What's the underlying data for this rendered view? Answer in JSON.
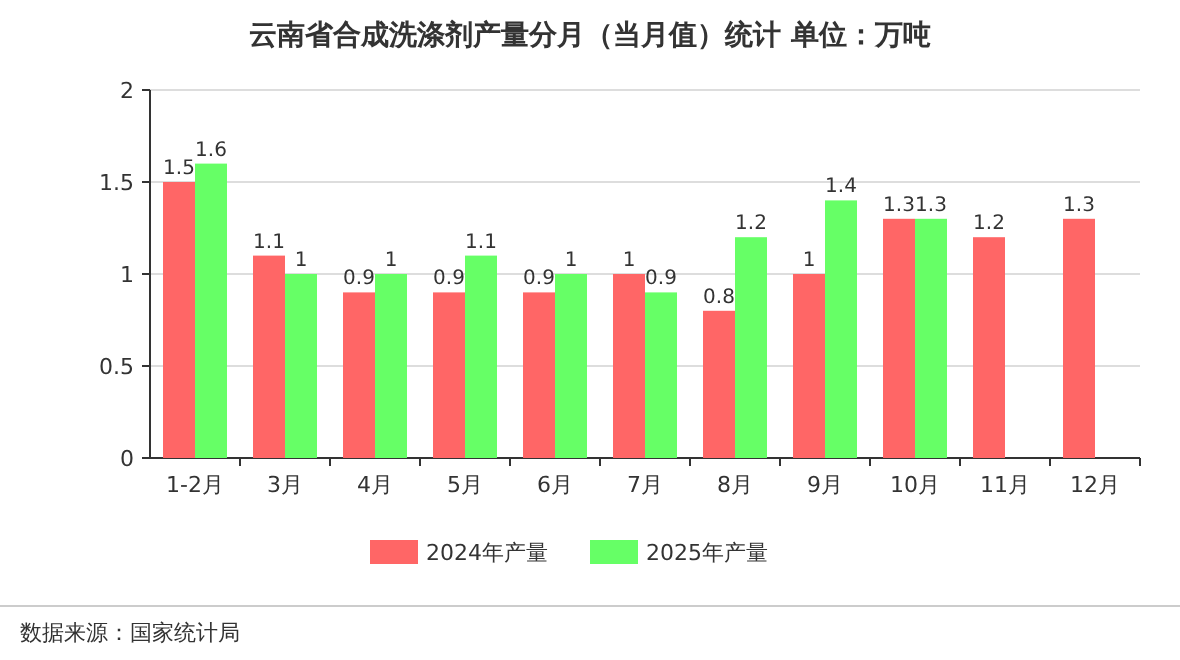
{
  "chart_data": {
    "type": "bar",
    "title": "云南省合成洗涤剂产量分月（当月值）统计  单位：万吨",
    "categories": [
      "1-2月",
      "3月",
      "4月",
      "5月",
      "6月",
      "7月",
      "8月",
      "9月",
      "10月",
      "11月",
      "12月"
    ],
    "series": [
      {
        "name": "2024年产量",
        "color": "#ff6666",
        "values": [
          1.5,
          1.1,
          0.9,
          0.9,
          0.9,
          1,
          0.8,
          1,
          1.3,
          1.2,
          1.3
        ]
      },
      {
        "name": "2025年产量",
        "color": "#66ff66",
        "values": [
          1.6,
          1,
          1,
          1.1,
          1,
          0.9,
          1.2,
          1.4,
          1.3,
          null,
          null
        ]
      }
    ],
    "ylim": [
      0,
      2
    ],
    "yticks": [
      0,
      0.5,
      1,
      1.5,
      2
    ],
    "grid": "y",
    "legend": "bottom",
    "data_labels": true,
    "annotations": [
      "数据来源：国家统计局"
    ]
  }
}
